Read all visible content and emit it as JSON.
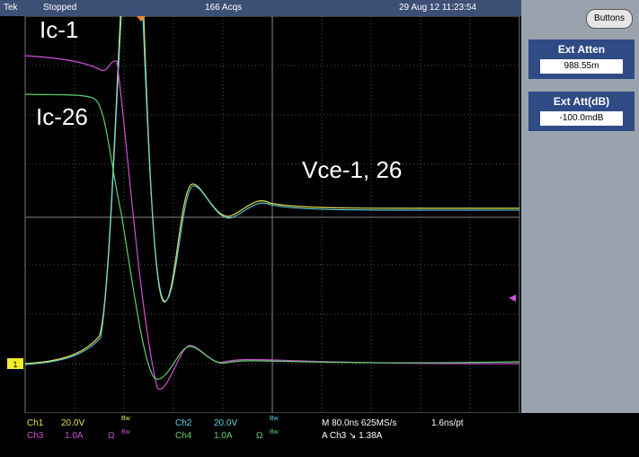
{
  "header": {
    "brand": "Tek",
    "status": "Stopped",
    "acquisitions": "166 Acqs",
    "datetime": "29 Aug 12 11:23:54",
    "button": "Buttons"
  },
  "side_panel": [
    {
      "label": "Ext Atten",
      "value": "988.55m"
    },
    {
      "label": "Ext Att(dB)",
      "value": "-100.0mdB"
    }
  ],
  "annotations": {
    "ic1": "Ic-1",
    "ic26": "Ic-26",
    "vce": "Vce-1, 26"
  },
  "ground_marker": "1",
  "footer": {
    "channels": [
      {
        "name": "Ch1",
        "scale": "20.0V",
        "bw": "Bw"
      },
      {
        "name": "Ch2",
        "scale": "20.0V",
        "bw": "Bw"
      },
      {
        "name": "Ch3",
        "scale": "1.0A",
        "term": "Ω",
        "bw": "Bw"
      },
      {
        "name": "Ch4",
        "scale": "1.0A",
        "term": "Ω",
        "bw": "Bw"
      }
    ],
    "timebase": "M 80.0ns 625MS/s",
    "resolution": "1.6ns/pt",
    "trigger": "A Ch3 ↘ 1.38A"
  }
}
